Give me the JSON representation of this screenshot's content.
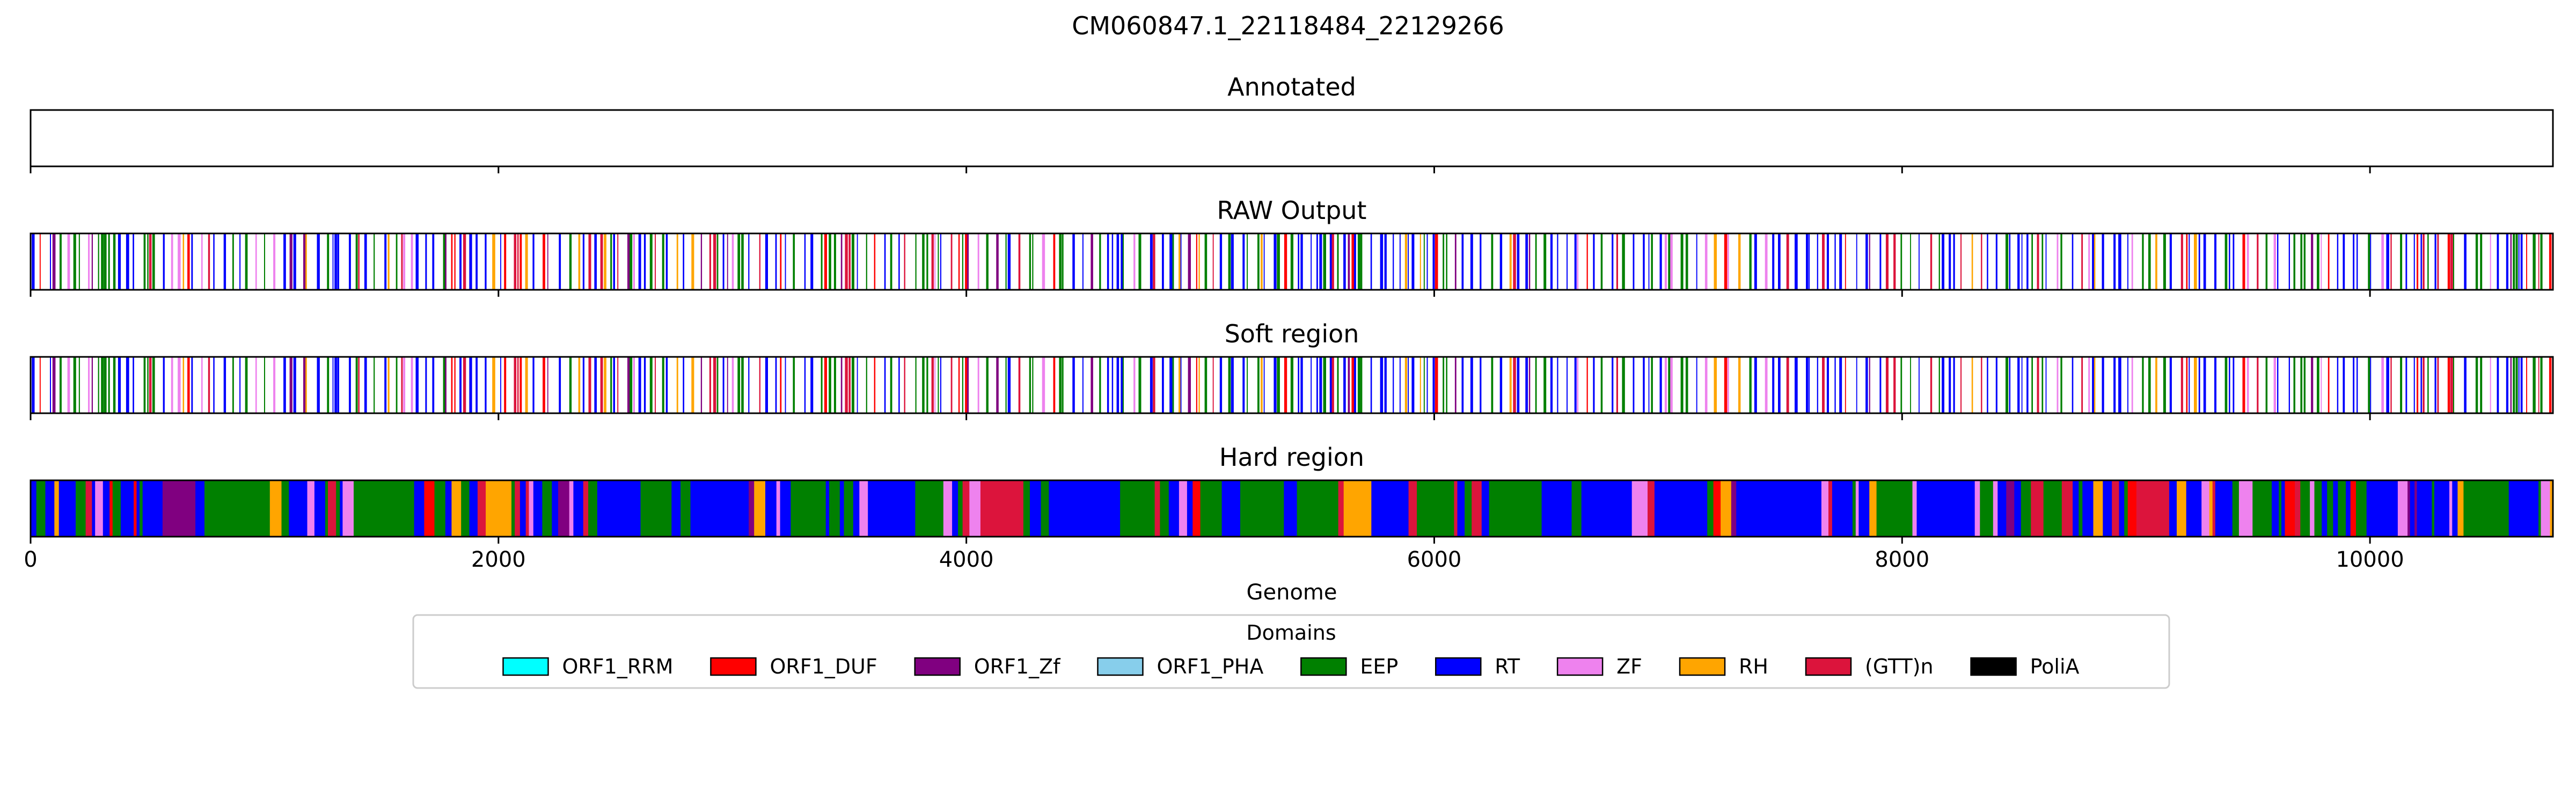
{
  "figure_title": "CM060847.1_22118484_22129266",
  "chart_data": {
    "type": "genome-track",
    "title": "CM060847.1_22118484_22129266",
    "xlabel": "Genome",
    "xlim": [
      0,
      10782
    ],
    "xticks": [
      0,
      2000,
      4000,
      6000,
      8000,
      10000
    ],
    "xtick_labels": [
      "0",
      "2000",
      "4000",
      "6000",
      "8000",
      "10000"
    ],
    "panels": [
      {
        "title": "Annotated",
        "mode": "empty"
      },
      {
        "title": "RAW Output",
        "mode": "sparse",
        "seed": 7
      },
      {
        "title": "Soft region",
        "mode": "sparse",
        "seed": 7
      },
      {
        "title": "Hard region",
        "mode": "dense",
        "seed": 23
      }
    ],
    "legend": {
      "title": "Domains",
      "placement": "bottom-center",
      "entries": [
        {
          "name": "ORF1_RRM",
          "color": "#00ffff"
        },
        {
          "name": "ORF1_DUF",
          "color": "#ff0000"
        },
        {
          "name": "ORF1_Zf",
          "color": "#800080"
        },
        {
          "name": "ORF1_PHA",
          "color": "#87ceeb"
        },
        {
          "name": "EEP",
          "color": "#008000"
        },
        {
          "name": "RT",
          "color": "#0000ff"
        },
        {
          "name": "ZF",
          "color": "#ee82ee"
        },
        {
          "name": "RH",
          "color": "#ffa500"
        },
        {
          "name": "(GTT)n",
          "color": "#dc143c"
        },
        {
          "name": "PoliA",
          "color": "#000000"
        }
      ]
    }
  }
}
